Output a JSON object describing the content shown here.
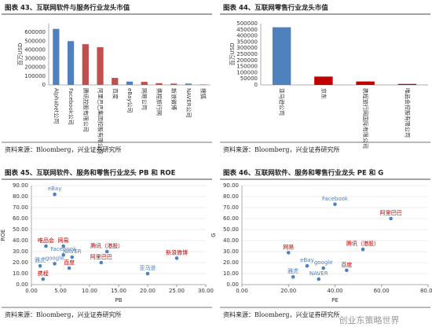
{
  "chart_data": [
    {
      "type": "bar",
      "title": "图表 43、互联网软件与服务行业龙头市值",
      "y_label": "百万USD",
      "categories": [
        "Alphabet公司",
        "Facebook公司",
        "腾讯控股有限公司",
        "阿里巴巴集团控股有限公司",
        "百度",
        "eBay公司",
        "网易公司",
        "携程旅行网",
        "新浪微博",
        "NAVER公司",
        "搜狐"
      ],
      "values": [
        640000,
        500000,
        465000,
        430000,
        80000,
        38000,
        35000,
        20000,
        15000,
        15000,
        5000
      ],
      "colors": [
        "#4f81bd",
        "#4f81bd",
        "#c0504d",
        "#c0504d",
        "#c0504d",
        "#4f81bd",
        "#c0504d",
        "#c0504d",
        "#c0504d",
        "#4f81bd",
        "#c0504d"
      ],
      "ylim": [
        0,
        700000
      ],
      "yticks": [
        0,
        100000,
        200000,
        300000,
        400000,
        500000,
        600000
      ],
      "grid": false,
      "source": "资料来源：Bloomberg，兴业证券研究所"
    },
    {
      "type": "bar",
      "title": "图表 44、互联网零售行业龙头市值",
      "y_label": "百万USD",
      "categories": [
        "亚马逊公司",
        "京东",
        "携程旅行网国际有限公司",
        "唯品会控股有限公司"
      ],
      "values": [
        470000,
        68000,
        28000,
        8000
      ],
      "colors": [
        "#4f81bd",
        "#c00000",
        "#c00000",
        "#c00000"
      ],
      "ylim": [
        0,
        500000
      ],
      "yticks": [
        0,
        50000,
        100000,
        150000,
        200000,
        250000,
        300000,
        350000,
        400000,
        450000,
        500000
      ],
      "grid": false,
      "source": "资料来源：Bloomberg，兴业证券研究所"
    },
    {
      "type": "scatter",
      "title": "图表 45、互联网软件、服务和零售行业龙头 PB 和 ROE",
      "x_label": "PB",
      "y_label": "ROE",
      "labels": [
        "eBay",
        "唯品会",
        "网易",
        "Facebook",
        "NAVER",
        "雅虎",
        "google",
        "携程",
        "百度",
        "腾讯（港股）",
        "阿里巴巴",
        "亚马逊",
        "新浪微博"
      ],
      "x": [
        4,
        2.5,
        5.5,
        5.5,
        7,
        1.5,
        4,
        2,
        6.5,
        13,
        12,
        20,
        25
      ],
      "values": [
        82,
        35,
        35,
        27,
        25,
        17,
        19,
        5,
        15,
        30,
        20,
        10,
        24
      ],
      "colors": [
        "#4f81bd",
        "#c00000",
        "#c00000",
        "#4f81bd",
        "#4f81bd",
        "#4f81bd",
        "#4f81bd",
        "#c00000",
        "#c00000",
        "#c00000",
        "#c00000",
        "#4f81bd",
        "#c00000"
      ],
      "xlim": [
        0,
        30
      ],
      "xticks": [
        {
          "value": 0,
          "label": "0.00"
        },
        {
          "value": 5,
          "label": "5.00"
        },
        {
          "value": 10,
          "label": "10.00"
        },
        {
          "value": 15,
          "label": "15.00"
        },
        {
          "value": 20,
          "label": "20.00"
        },
        {
          "value": 25,
          "label": "25.00"
        },
        {
          "value": 30,
          "label": "30.00"
        }
      ],
      "ylim": [
        0,
        90
      ],
      "yticks": [
        {
          "value": 0,
          "label": "0.00"
        },
        {
          "value": 10,
          "label": "10.00"
        },
        {
          "value": 20,
          "label": "20.00"
        },
        {
          "value": 30,
          "label": "30.00"
        },
        {
          "value": 40,
          "label": "40.00"
        },
        {
          "value": 50,
          "label": "50.00"
        },
        {
          "value": 60,
          "label": "60.00"
        },
        {
          "value": 70,
          "label": "70.00"
        },
        {
          "value": 80,
          "label": "80.00"
        },
        {
          "value": 90,
          "label": "90.00"
        }
      ],
      "grid": true,
      "source": "资料来源：Bloomberg，兴业证券研究所"
    },
    {
      "type": "scatter",
      "title": "图表 46、互联网软件、服务和零售行业龙头 PE 和 G",
      "x_label": "PE",
      "y_label": "G",
      "labels": [
        "Facebook",
        "阿里巴巴",
        "腾讯（港股）",
        "网易",
        "百度",
        "eBay",
        "google",
        "NAVER",
        "雅虎"
      ],
      "x": [
        40,
        64,
        52,
        20,
        45,
        28,
        35,
        33,
        22
      ],
      "values": [
        73,
        60,
        32,
        29,
        13,
        17,
        15,
        5,
        7
      ],
      "colors": [
        "#4f81bd",
        "#c00000",
        "#c00000",
        "#c00000",
        "#c00000",
        "#4f81bd",
        "#4f81bd",
        "#4f81bd",
        "#4f81bd"
      ],
      "xlim": [
        0,
        80
      ],
      "xticks": [
        {
          "value": 0,
          "label": "0.00"
        },
        {
          "value": 20,
          "label": "20.00"
        },
        {
          "value": 40,
          "label": "40.00"
        },
        {
          "value": 60,
          "label": "60.00"
        },
        {
          "value": 80,
          "label": "80.00"
        }
      ],
      "ylim": [
        0,
        90
      ],
      "yticks": [
        {
          "value": 0,
          "label": "0.00"
        },
        {
          "value": 10,
          "label": "10.00"
        },
        {
          "value": 20,
          "label": "20.00"
        },
        {
          "value": 30,
          "label": "30.00"
        },
        {
          "value": 40,
          "label": "40.00"
        },
        {
          "value": 50,
          "label": "50.00"
        },
        {
          "value": 60,
          "label": "60.00"
        },
        {
          "value": 70,
          "label": "70.00"
        },
        {
          "value": 80,
          "label": "80.00"
        },
        {
          "value": 90,
          "label": "90.00"
        }
      ],
      "grid": true,
      "source": "资料来源：Bloomberg，兴业证券研究所"
    }
  ],
  "watermark": "创业东策略世界"
}
